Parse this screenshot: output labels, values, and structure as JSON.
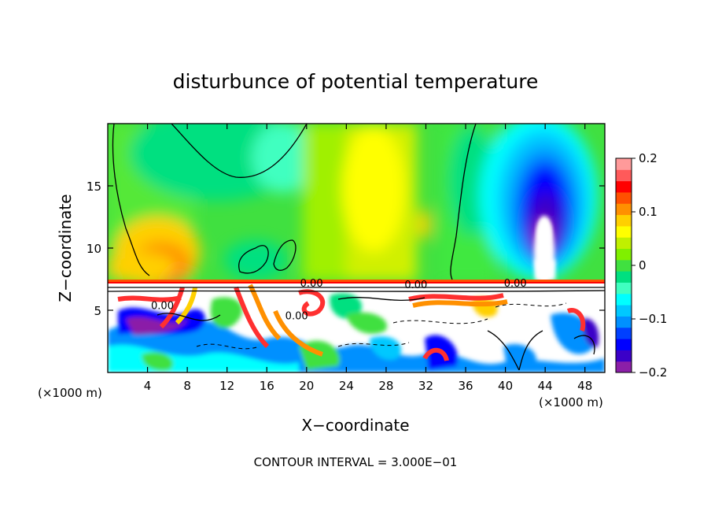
{
  "chart_data": {
    "type": "heatmap",
    "title": "disturbunce of potential temperature",
    "xlabel": "X−coordinate",
    "ylabel": "Z−coordinate",
    "x_unit_label": "(×1000 m)",
    "x_unit_label_right": "(×1000 m)",
    "footer": "CONTOUR INTERVAL = 3.000E−01",
    "xlim": [
      0,
      50
    ],
    "ylim": [
      0,
      20
    ],
    "x_ticks": [
      4,
      8,
      12,
      16,
      20,
      24,
      28,
      32,
      36,
      40,
      44,
      48
    ],
    "y_ticks": [
      5,
      10,
      15
    ],
    "colorbar": {
      "vmin": -0.2,
      "vmax": 0.2,
      "tick_values": [
        0.2,
        0.1,
        0,
        -0.1,
        -0.2
      ],
      "tick_labels": [
        "0.2",
        "0.1",
        "0",
        "−0.1",
        "−0.2"
      ],
      "colors": [
        "#8b1fa8",
        "#3b00c8",
        "#0000ff",
        "#0040ff",
        "#0090ff",
        "#00c8ff",
        "#00ffff",
        "#40ffc0",
        "#00e080",
        "#40e040",
        "#80f000",
        "#c0f000",
        "#ffff00",
        "#ffd000",
        "#ff9000",
        "#ff5000",
        "#ff0000",
        "#ff5a5a",
        "#ff9a9a"
      ]
    },
    "contour_labels": [
      {
        "x": 20.5,
        "z": 7.2,
        "text": "0.00"
      },
      {
        "x": 31.0,
        "z": 7.1,
        "text": "0.00"
      },
      {
        "x": 41.0,
        "z": 7.2,
        "text": "0.00"
      },
      {
        "x": 5.5,
        "z": 5.4,
        "text": "0.00"
      },
      {
        "x": 19.0,
        "z": 4.6,
        "text": "0.00"
      }
    ]
  }
}
